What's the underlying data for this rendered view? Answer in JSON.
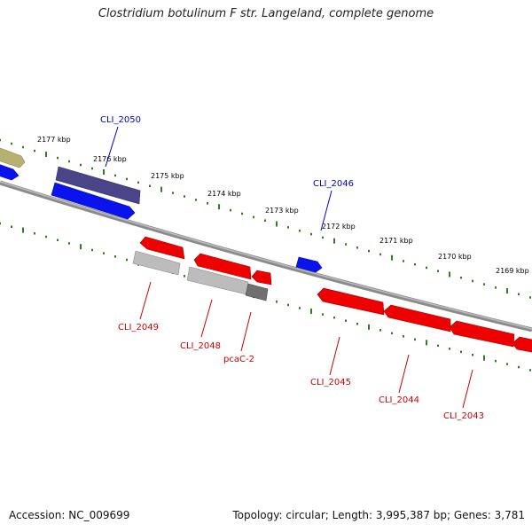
{
  "title": "Clostridium botulinum F str. Langeland, complete genome",
  "footer": {
    "accession": "Accession: NC_009699",
    "topology": "Topology: circular; Length: 3,995,387 bp; Genes: 3,781"
  },
  "ticks": [
    "2177 kbp",
    "2176 kbp",
    "2175 kbp",
    "2174 kbp",
    "2173 kbp",
    "2172 kbp",
    "2171 kbp",
    "2170 kbp",
    "2169 kbp"
  ],
  "gene_labels": {
    "plus": [
      "CLI_2050",
      "CLI_2046"
    ],
    "minus": [
      "CLI_2049",
      "CLI_2048",
      "pcaC-2",
      "CLI_2045",
      "CLI_2044",
      "CLI_2043"
    ]
  },
  "colors": {
    "backbone": "#8a8a8a",
    "tick": "#2e7d1e",
    "plus_label": "#0000cc",
    "minus_label": "#cc0000",
    "red_gene": "#ee0000",
    "blue_gene": "#0a12ee",
    "purple_gene": "#4a4488",
    "olive_gene": "#b8b070",
    "light_gray_gene": "#bcbcbc",
    "dark_gray_gene": "#707070"
  }
}
